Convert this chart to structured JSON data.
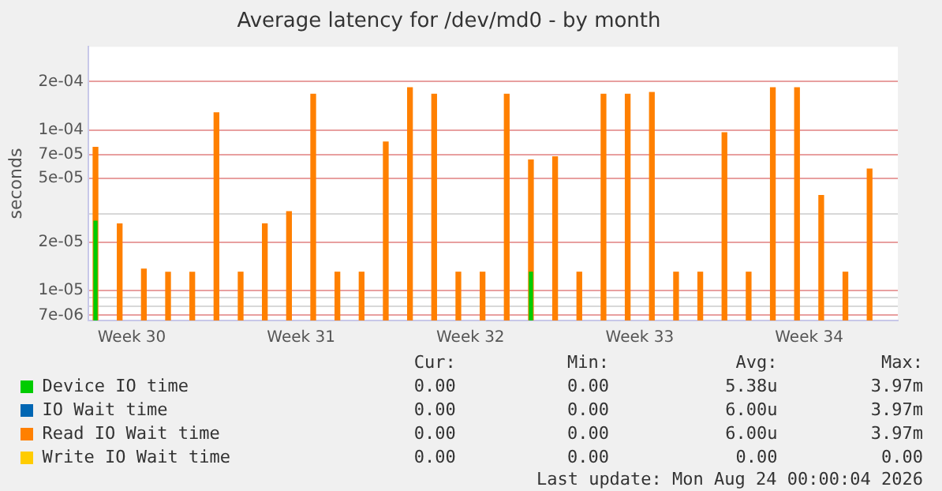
{
  "chart_data": {
    "type": "bar",
    "title": "Average latency for /dev/md0 - by month",
    "ylabel": "seconds",
    "x": [
      "2026-07-22",
      "2026-07-23",
      "2026-07-24",
      "2026-07-25",
      "2026-07-26",
      "2026-07-27",
      "2026-07-28",
      "2026-07-29",
      "2026-07-30",
      "2026-07-31",
      "2026-08-01",
      "2026-08-02",
      "2026-08-03",
      "2026-08-04",
      "2026-08-05",
      "2026-08-06",
      "2026-08-07",
      "2026-08-08",
      "2026-08-09",
      "2026-08-10",
      "2026-08-11",
      "2026-08-12",
      "2026-08-13",
      "2026-08-14",
      "2026-08-15",
      "2026-08-16",
      "2026-08-17",
      "2026-08-18",
      "2026-08-19",
      "2026-08-20",
      "2026-08-21",
      "2026-08-22",
      "2026-08-23"
    ],
    "series": [
      {
        "name": "Read IO Wait time",
        "color": "#ff8000",
        "values": [
          7.8e-05,
          2.6e-05,
          1.36e-05,
          1.3e-05,
          1.3e-05,
          0.000128,
          1.3e-05,
          2.6e-05,
          3.1e-05,
          0.000167,
          1.3e-05,
          1.3e-05,
          8.4e-05,
          0.000183,
          0.000167,
          1.3e-05,
          1.3e-05,
          0.000167,
          6.5e-05,
          6.8e-05,
          1.3e-05,
          0.000167,
          0.000167,
          0.000171,
          1.3e-05,
          1.3e-05,
          9.6e-05,
          1.3e-05,
          0.000183,
          0.000183,
          3.9e-05,
          1.3e-05,
          5.7e-05
        ]
      },
      {
        "name": "IO Wait time",
        "color": "#0066b3",
        "values": [
          null,
          null,
          null,
          null,
          null,
          null,
          null,
          null,
          null,
          null,
          null,
          null,
          null,
          null,
          null,
          null,
          null,
          null,
          null,
          null,
          null,
          null,
          null,
          null,
          null,
          null,
          null,
          null,
          null,
          null,
          null,
          null,
          null
        ]
      },
      {
        "name": "Device IO time",
        "color": "#00cc00",
        "values": [
          2.7e-05,
          null,
          null,
          null,
          null,
          null,
          null,
          null,
          null,
          null,
          null,
          null,
          null,
          null,
          null,
          null,
          null,
          null,
          1.3e-05,
          null,
          null,
          null,
          null,
          null,
          null,
          null,
          null,
          null,
          null,
          null,
          null,
          null,
          null
        ]
      },
      {
        "name": "Write IO Wait time",
        "color": "#ffcc00",
        "values": [
          null,
          null,
          null,
          null,
          null,
          null,
          null,
          null,
          null,
          null,
          null,
          null,
          null,
          null,
          null,
          null,
          null,
          null,
          null,
          null,
          null,
          null,
          null,
          null,
          null,
          null,
          null,
          null,
          null,
          null,
          null,
          null,
          null
        ]
      }
    ],
    "log": "y",
    "xlim": [
      "2026-07-21T17:00",
      "2026-08-24T04:00"
    ],
    "xticks": [
      {
        "value": "2026-07-23T12:00",
        "label": "Week 30"
      },
      {
        "value": "2026-07-30T12:00",
        "label": "Week 31"
      },
      {
        "value": "2026-08-06T12:00",
        "label": "Week 32"
      },
      {
        "value": "2026-08-13T12:00",
        "label": "Week 33"
      },
      {
        "value": "2026-08-20T12:00",
        "label": "Week 34"
      }
    ],
    "ylim": [
      6.5e-06,
      0.00033
    ],
    "yticks": [
      {
        "value": 7e-06,
        "label": "7e-06"
      },
      {
        "value": 8e-06,
        "label": null
      },
      {
        "value": 9e-06,
        "label": null
      },
      {
        "value": 1e-05,
        "label": "1e-05"
      },
      {
        "value": 2e-05,
        "label": "2e-05"
      },
      {
        "value": 3e-05,
        "label": null
      },
      {
        "value": 5e-05,
        "label": "5e-05"
      },
      {
        "value": 7e-05,
        "label": "7e-05"
      },
      {
        "value": 0.0001,
        "label": "1e-04"
      },
      {
        "value": 0.0002,
        "label": "2e-04"
      }
    ],
    "grid": "y",
    "legend": "bottom",
    "annotations": [
      "Cur:",
      "Min:",
      "Avg:",
      "Max:",
      "0.00",
      "0.00",
      "6.00u",
      "3.97m",
      "0.00",
      "0.00",
      "6.00u",
      "3.97m",
      "0.00",
      "0.00",
      "5.38u",
      "3.97m",
      "0.00",
      "0.00",
      "0.00",
      "0.00",
      "Last update: Mon Aug 24 00:00:04 2026"
    ]
  }
}
